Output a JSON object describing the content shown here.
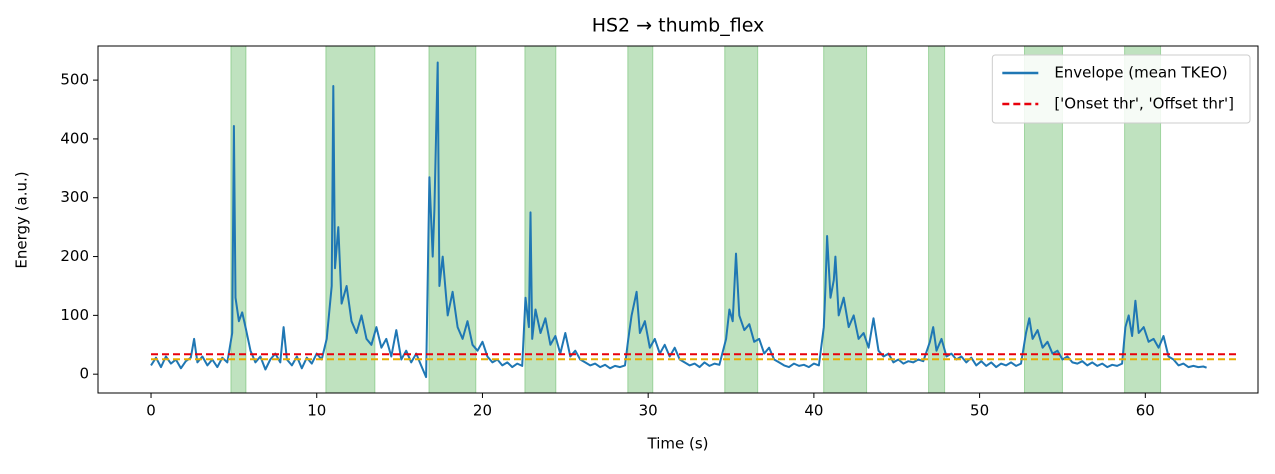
{
  "chart_data": {
    "type": "line",
    "title": "HS2 → thumb_flex",
    "xlabel": "Time (s)",
    "ylabel": "Energy (a.u.)",
    "xlim": [
      -3.2,
      66.8
    ],
    "ylim": [
      -32,
      558
    ],
    "xticks": [
      0,
      10,
      20,
      30,
      40,
      50,
      60
    ],
    "yticks": [
      0,
      100,
      200,
      300,
      400,
      500
    ],
    "legend": "upper right",
    "span_color": "#2ca02c",
    "spans": [
      [
        4.82,
        5.73
      ],
      [
        10.55,
        13.51
      ],
      [
        16.77,
        19.6
      ],
      [
        22.56,
        24.43
      ],
      [
        28.77,
        30.28
      ],
      [
        34.62,
        36.61
      ],
      [
        40.59,
        43.18
      ],
      [
        46.92,
        47.89
      ],
      [
        52.71,
        55.0
      ],
      [
        58.75,
        60.92
      ]
    ],
    "series": [
      {
        "name": "Envelope (mean TKEO)",
        "color": "#1f77b4",
        "dashed": false,
        "x": [
          0,
          0.3,
          0.6,
          0.9,
          1.2,
          1.5,
          1.8,
          2.1,
          2.4,
          2.6,
          2.8,
          3.1,
          3.4,
          3.7,
          4.0,
          4.3,
          4.6,
          4.9,
          5.0,
          5.1,
          5.3,
          5.5,
          5.7,
          6.0,
          6.3,
          6.6,
          6.9,
          7.2,
          7.5,
          7.8,
          8.0,
          8.2,
          8.5,
          8.8,
          9.1,
          9.4,
          9.7,
          10.0,
          10.3,
          10.6,
          10.9,
          11.0,
          11.1,
          11.3,
          11.5,
          11.8,
          12.1,
          12.4,
          12.7,
          13.0,
          13.3,
          13.6,
          13.9,
          14.2,
          14.5,
          14.8,
          15.1,
          15.4,
          15.7,
          16.0,
          16.3,
          16.6,
          16.8,
          17.0,
          17.1,
          17.3,
          17.4,
          17.6,
          17.9,
          18.2,
          18.5,
          18.8,
          19.1,
          19.4,
          19.7,
          20.0,
          20.3,
          20.6,
          20.9,
          21.2,
          21.5,
          21.8,
          22.1,
          22.4,
          22.6,
          22.8,
          22.9,
          23.0,
          23.2,
          23.5,
          23.8,
          24.1,
          24.4,
          24.7,
          25.0,
          25.3,
          25.6,
          25.9,
          26.2,
          26.5,
          26.8,
          27.1,
          27.4,
          27.7,
          28.0,
          28.3,
          28.6,
          28.8,
          29.0,
          29.3,
          29.5,
          29.8,
          30.1,
          30.4,
          30.7,
          31.0,
          31.3,
          31.6,
          31.9,
          32.2,
          32.5,
          32.8,
          33.1,
          33.4,
          33.7,
          34.0,
          34.3,
          34.7,
          34.9,
          35.1,
          35.3,
          35.5,
          35.8,
          36.1,
          36.4,
          36.7,
          37.0,
          37.3,
          37.6,
          37.9,
          38.2,
          38.5,
          38.8,
          39.1,
          39.4,
          39.7,
          40.0,
          40.3,
          40.6,
          40.7,
          40.8,
          41.0,
          41.2,
          41.3,
          41.5,
          41.8,
          42.1,
          42.4,
          42.7,
          43.0,
          43.3,
          43.6,
          43.9,
          44.2,
          44.5,
          44.8,
          45.1,
          45.4,
          45.7,
          46.0,
          46.3,
          46.6,
          47.0,
          47.2,
          47.4,
          47.7,
          48.0,
          48.3,
          48.6,
          48.9,
          49.2,
          49.5,
          49.8,
          50.1,
          50.4,
          50.7,
          51.0,
          51.3,
          51.6,
          51.9,
          52.2,
          52.5,
          52.8,
          53.0,
          53.2,
          53.5,
          53.8,
          54.1,
          54.4,
          54.7,
          55.0,
          55.3,
          55.6,
          55.9,
          56.2,
          56.5,
          56.8,
          57.1,
          57.4,
          57.7,
          58.0,
          58.3,
          58.6,
          58.8,
          59.0,
          59.2,
          59.4,
          59.6,
          59.9,
          60.2,
          60.5,
          60.8,
          61.1,
          61.4,
          61.7,
          62.0,
          62.3,
          62.6,
          62.9,
          63.2,
          63.5,
          63.7
        ],
        "values": [
          15,
          28,
          12,
          30,
          18,
          25,
          10,
          22,
          28,
          60,
          20,
          30,
          15,
          25,
          12,
          28,
          20,
          70,
          422,
          130,
          90,
          105,
          80,
          40,
          20,
          30,
          8,
          25,
          35,
          20,
          80,
          25,
          15,
          30,
          10,
          28,
          18,
          35,
          25,
          60,
          150,
          490,
          180,
          250,
          120,
          150,
          90,
          70,
          100,
          60,
          50,
          80,
          45,
          60,
          30,
          75,
          25,
          40,
          20,
          35,
          15,
          -5,
          335,
          200,
          280,
          530,
          150,
          200,
          100,
          140,
          80,
          60,
          90,
          50,
          40,
          55,
          30,
          20,
          25,
          15,
          20,
          12,
          18,
          14,
          130,
          80,
          275,
          60,
          110,
          70,
          95,
          50,
          65,
          35,
          70,
          30,
          40,
          25,
          20,
          15,
          18,
          12,
          16,
          10,
          14,
          12,
          15,
          60,
          100,
          140,
          70,
          90,
          45,
          60,
          35,
          50,
          30,
          45,
          25,
          20,
          15,
          18,
          12,
          20,
          14,
          18,
          16,
          60,
          110,
          90,
          205,
          100,
          75,
          85,
          55,
          60,
          35,
          45,
          25,
          20,
          15,
          12,
          18,
          14,
          16,
          12,
          18,
          15,
          80,
          150,
          235,
          130,
          160,
          200,
          100,
          130,
          80,
          100,
          60,
          70,
          45,
          95,
          40,
          30,
          35,
          20,
          25,
          18,
          22,
          20,
          25,
          22,
          55,
          80,
          40,
          60,
          30,
          35,
          25,
          30,
          20,
          28,
          15,
          22,
          14,
          20,
          12,
          18,
          15,
          20,
          14,
          18,
          70,
          95,
          60,
          75,
          45,
          55,
          35,
          40,
          25,
          30,
          20,
          18,
          22,
          15,
          20,
          14,
          18,
          12,
          16,
          14,
          18,
          80,
          100,
          65,
          125,
          70,
          80,
          55,
          60,
          45,
          65,
          30,
          25,
          15,
          18,
          12,
          14,
          12,
          13,
          11
        ]
      },
      {
        "name": "['Onset thr', 'Offset thr']",
        "color": "#e8000b",
        "dashed": true,
        "x": [
          0,
          65.5
        ],
        "values": [
          34,
          34
        ]
      },
      {
        "color": "#e6ac00",
        "dashed": true,
        "x": [
          0,
          65.5
        ],
        "values": [
          25.5,
          25.5
        ]
      }
    ]
  }
}
